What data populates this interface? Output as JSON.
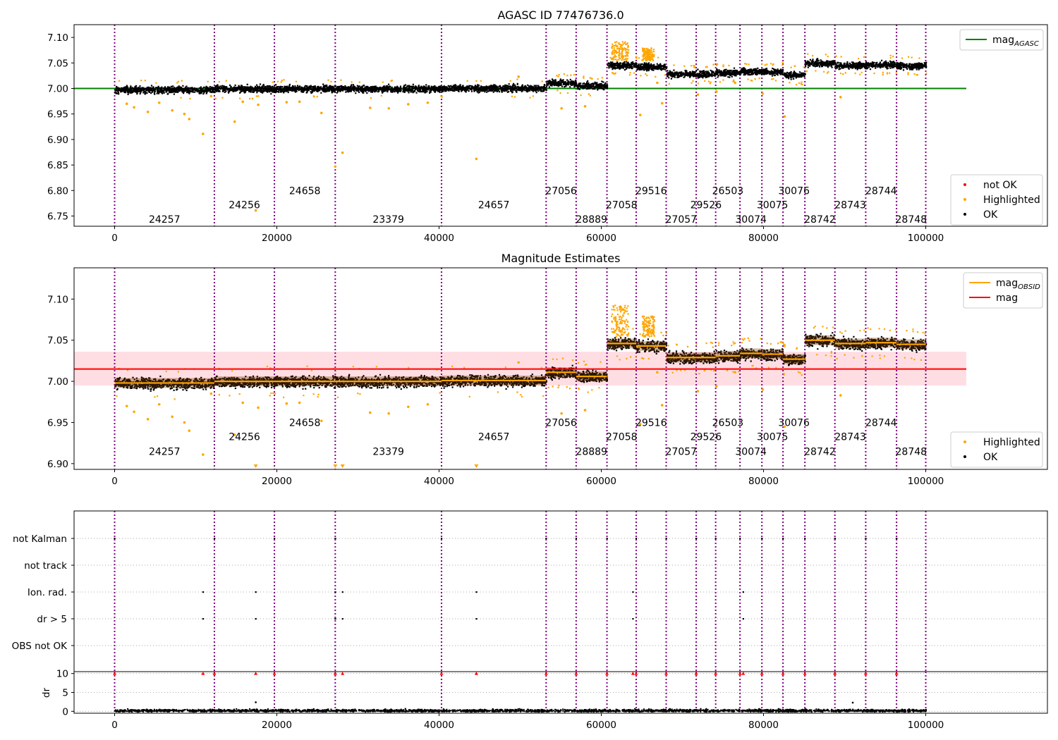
{
  "figure": {
    "panels": [
      {
        "key": "agasc",
        "title": "AGASC ID 77476736.0",
        "legend_top": [
          {
            "label": "mag",
            "sub": "AGASC",
            "color": "#008000",
            "style": "line"
          }
        ],
        "legend_bottom": [
          {
            "label": "not OK",
            "color": "#ff0000",
            "style": "dot"
          },
          {
            "label": "Highlighted",
            "color": "#ffa500",
            "style": "dot"
          },
          {
            "label": "OK",
            "color": "#000000",
            "style": "dot"
          }
        ]
      },
      {
        "key": "estimates",
        "title": "Magnitude Estimates",
        "legend_top": [
          {
            "label": "mag",
            "sub": "OBSID",
            "color": "#ffa500",
            "style": "line"
          },
          {
            "label": "mag",
            "sub": "",
            "color": "#ff0000",
            "style": "line"
          }
        ],
        "legend_bottom": [
          {
            "label": "Highlighted",
            "color": "#ffa500",
            "style": "dot"
          },
          {
            "label": "OK",
            "color": "#000000",
            "style": "dot"
          }
        ]
      }
    ]
  },
  "chart_data": [
    {
      "type": "scatter",
      "title": "AGASC ID 77476736.0",
      "xlim": [
        -5000,
        115000
      ],
      "ylim": [
        6.73,
        7.125
      ],
      "xticks": [
        0,
        20000,
        40000,
        60000,
        80000,
        100000
      ],
      "yticks": [
        6.75,
        6.8,
        6.85,
        6.9,
        6.95,
        7.0,
        7.05,
        7.1
      ],
      "reference_line": {
        "name": "mag_AGASC",
        "y": 7.0,
        "x": [
          -5000,
          105000
        ],
        "color": "#008000"
      },
      "segments": [
        {
          "obsid": "24257",
          "x": [
            0,
            12300
          ],
          "mag": 6.998
        },
        {
          "obsid": "24256",
          "x": [
            12300,
            19700
          ],
          "mag": 7.0
        },
        {
          "obsid": "24658",
          "x": [
            19700,
            27200
          ],
          "mag": 7.0
        },
        {
          "obsid": "23379",
          "x": [
            27200,
            40300
          ],
          "mag": 7.0
        },
        {
          "obsid": "24657",
          "x": [
            40300,
            53200
          ],
          "mag": 7.001
        },
        {
          "obsid": "27056",
          "x": [
            53200,
            56900
          ],
          "mag": 7.011
        },
        {
          "obsid": "28889",
          "x": [
            56900,
            60700
          ],
          "mag": 7.006
        },
        {
          "obsid": "27058",
          "x": [
            60700,
            64300
          ],
          "mag": 7.046
        },
        {
          "obsid": "29516",
          "x": [
            64300,
            68000
          ],
          "mag": 7.043
        },
        {
          "obsid": "27057",
          "x": [
            68000,
            71700
          ],
          "mag": 7.029
        },
        {
          "obsid": "29526",
          "x": [
            71700,
            74100
          ],
          "mag": 7.029
        },
        {
          "obsid": "26503",
          "x": [
            74100,
            77100
          ],
          "mag": 7.031
        },
        {
          "obsid": "30074",
          "x": [
            77100,
            79800
          ],
          "mag": 7.034
        },
        {
          "obsid": "30075",
          "x": [
            79800,
            82400
          ],
          "mag": 7.033
        },
        {
          "obsid": "30076",
          "x": [
            82400,
            85100
          ],
          "mag": 7.027
        },
        {
          "obsid": "28742",
          "x": [
            85100,
            88800
          ],
          "mag": 7.05
        },
        {
          "obsid": "28743",
          "x": [
            88800,
            92600
          ],
          "mag": 7.046
        },
        {
          "obsid": "28744",
          "x": [
            92600,
            96400
          ],
          "mag": 7.047
        },
        {
          "obsid": "28748",
          "x": [
            96400,
            100000
          ],
          "mag": 7.045
        }
      ],
      "obsid_label_rows": [
        6.8,
        6.772,
        6.744
      ],
      "highlighted_outliers": [
        {
          "x": 1500,
          "y": 6.97
        },
        {
          "x": 2400,
          "y": 6.963
        },
        {
          "x": 4100,
          "y": 6.954
        },
        {
          "x": 5500,
          "y": 6.972
        },
        {
          "x": 7100,
          "y": 6.957
        },
        {
          "x": 8600,
          "y": 6.95
        },
        {
          "x": 9200,
          "y": 6.94
        },
        {
          "x": 10900,
          "y": 6.911
        },
        {
          "x": 11900,
          "y": 6.985
        },
        {
          "x": 14800,
          "y": 6.935
        },
        {
          "x": 15800,
          "y": 6.974
        },
        {
          "x": 17400,
          "y": 6.761
        },
        {
          "x": 17700,
          "y": 6.968
        },
        {
          "x": 21200,
          "y": 6.973
        },
        {
          "x": 22800,
          "y": 6.974
        },
        {
          "x": 25500,
          "y": 6.952
        },
        {
          "x": 27200,
          "y": 6.847
        },
        {
          "x": 28100,
          "y": 6.874
        },
        {
          "x": 31500,
          "y": 6.962
        },
        {
          "x": 33800,
          "y": 6.961
        },
        {
          "x": 36200,
          "y": 6.969
        },
        {
          "x": 38600,
          "y": 6.972
        },
        {
          "x": 44600,
          "y": 6.862
        },
        {
          "x": 49800,
          "y": 7.023
        },
        {
          "x": 55100,
          "y": 6.961
        },
        {
          "x": 58000,
          "y": 6.965
        },
        {
          "x": 64800,
          "y": 6.948
        },
        {
          "x": 66900,
          "y": 7.011
        },
        {
          "x": 67500,
          "y": 6.971
        },
        {
          "x": 71900,
          "y": 6.988
        },
        {
          "x": 74200,
          "y": 6.994
        },
        {
          "x": 76500,
          "y": 7.011
        },
        {
          "x": 79900,
          "y": 6.99
        },
        {
          "x": 82600,
          "y": 6.945
        },
        {
          "x": 89500,
          "y": 6.983
        }
      ]
    },
    {
      "type": "scatter",
      "title": "Magnitude Estimates",
      "xlim": [
        -5000,
        115000
      ],
      "ylim": [
        6.893,
        7.138
      ],
      "xticks": [
        0,
        20000,
        40000,
        60000,
        80000,
        100000
      ],
      "yticks": [
        6.9,
        6.95,
        7.0,
        7.05,
        7.1
      ],
      "reference_line": {
        "name": "mag",
        "y": 7.015,
        "x": [
          -5000,
          105000
        ],
        "color": "#ff0000"
      },
      "reference_band": {
        "y": [
          6.995,
          7.036
        ],
        "x": [
          -5000,
          105000
        ]
      },
      "obsid_label_rows": [
        6.95,
        6.933,
        6.915
      ],
      "below_axis_markers_x": [
        17400,
        27200,
        28100,
        44600
      ]
    },
    {
      "type": "scatter",
      "title": "",
      "xlim": [
        -5000,
        115000
      ],
      "xticks": [
        0,
        20000,
        40000,
        60000,
        80000,
        100000
      ],
      "flag_rows": [
        "not Kalman",
        "not track",
        "Ion. rad.",
        "dr > 5",
        "OBS not OK"
      ],
      "flag_points": {
        "not Kalman": [
          0,
          12300,
          19700,
          27200,
          40300,
          53200,
          56900,
          60700,
          64300,
          68000,
          71700,
          74100,
          77100,
          79800,
          82400,
          85100,
          88800,
          92600,
          96400
        ],
        "not track": [],
        "Ion. rad.": [
          10900,
          17400,
          27200,
          28100,
          44600,
          63900,
          77500
        ],
        "dr > 5": [
          10900,
          17400,
          27200,
          28100,
          44600,
          63900,
          77500
        ],
        "OBS not OK": []
      },
      "dr": {
        "ylabel": "dr",
        "ylim": [
          -0.5,
          10.5
        ],
        "yticks": [
          0,
          5,
          10
        ],
        "typical_x": [
          0,
          100000
        ],
        "typical_y": 0.3,
        "clipped_points_x": [
          0,
          10900,
          12300,
          17400,
          19700,
          27200,
          28100,
          40300,
          44600,
          53200,
          56900,
          60700,
          63900,
          64300,
          68000,
          71700,
          74100,
          77100,
          77500,
          79800,
          82400,
          85100,
          88800,
          92600,
          96400
        ],
        "isolated_points": [
          {
            "x": 17400,
            "y": 2.4
          },
          {
            "x": 91000,
            "y": 2.3
          }
        ]
      }
    }
  ]
}
